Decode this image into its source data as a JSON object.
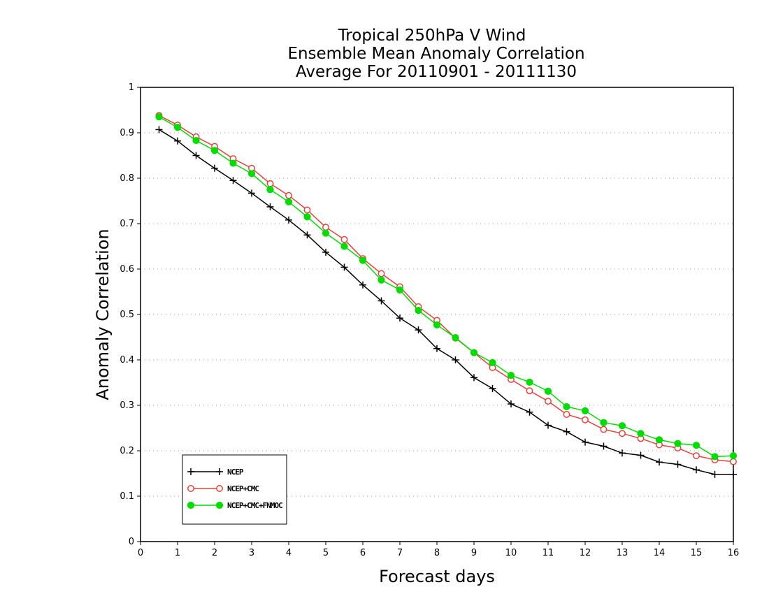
{
  "chart_data": {
    "type": "line",
    "title": [
      "Tropical 250hPa V Wind",
      "Ensemble Mean Anomaly Correlation",
      "Average For 20110901 - 20111130"
    ],
    "xlabel": "Forecast days",
    "ylabel": "Anomaly Correlation",
    "xlim": [
      0,
      16
    ],
    "ylim": [
      0,
      1
    ],
    "x_ticks": [
      0,
      1,
      2,
      3,
      4,
      5,
      6,
      7,
      8,
      9,
      10,
      11,
      12,
      13,
      14,
      15,
      16
    ],
    "y_ticks": [
      0,
      0.1,
      0.2,
      0.3,
      0.4,
      0.5,
      0.6,
      0.7,
      0.8,
      0.9,
      1
    ],
    "y_tick_labels": [
      "0",
      "0.1",
      "0.2",
      "0.3",
      "0.4",
      "0.5",
      "0.6",
      "0.7",
      "0.8",
      "0.9",
      "1"
    ],
    "grid": "horizontal-dotted",
    "legend_position": "bottom-left",
    "x": [
      0.5,
      1,
      1.5,
      2,
      2.5,
      3,
      3.5,
      4,
      4.5,
      5,
      5.5,
      6,
      6.5,
      7,
      7.5,
      8,
      8.5,
      9,
      9.5,
      10,
      10.5,
      11,
      11.5,
      12,
      12.5,
      13,
      13.5,
      14,
      14.5,
      15,
      15.5,
      16
    ],
    "series": [
      {
        "name": "NCEP",
        "color": "#000000",
        "marker": "plus",
        "values": [
          0.907,
          0.882,
          0.85,
          0.822,
          0.795,
          0.767,
          0.737,
          0.708,
          0.675,
          0.637,
          0.604,
          0.565,
          0.53,
          0.492,
          0.466,
          0.425,
          0.4,
          0.361,
          0.337,
          0.303,
          0.285,
          0.256,
          0.242,
          0.219,
          0.21,
          0.195,
          0.19,
          0.175,
          0.17,
          0.158,
          0.148,
          0.148
        ]
      },
      {
        "name": "NCEP+CMC",
        "color": "#e8403c",
        "marker": "open-circle",
        "values": [
          0.938,
          0.917,
          0.891,
          0.87,
          0.843,
          0.822,
          0.788,
          0.762,
          0.73,
          0.692,
          0.665,
          0.623,
          0.59,
          0.561,
          0.517,
          0.487,
          0.448,
          0.416,
          0.383,
          0.357,
          0.332,
          0.309,
          0.28,
          0.268,
          0.247,
          0.238,
          0.227,
          0.213,
          0.206,
          0.189,
          0.18,
          0.176
        ]
      },
      {
        "name": "NCEP+CMC+FNMOC",
        "color": "#00dd00",
        "marker": "filled-circle",
        "values": [
          0.935,
          0.912,
          0.883,
          0.861,
          0.833,
          0.81,
          0.775,
          0.748,
          0.715,
          0.679,
          0.65,
          0.619,
          0.576,
          0.554,
          0.509,
          0.477,
          0.449,
          0.416,
          0.394,
          0.366,
          0.351,
          0.331,
          0.297,
          0.288,
          0.262,
          0.255,
          0.238,
          0.224,
          0.216,
          0.212,
          0.187,
          0.189
        ]
      }
    ]
  }
}
